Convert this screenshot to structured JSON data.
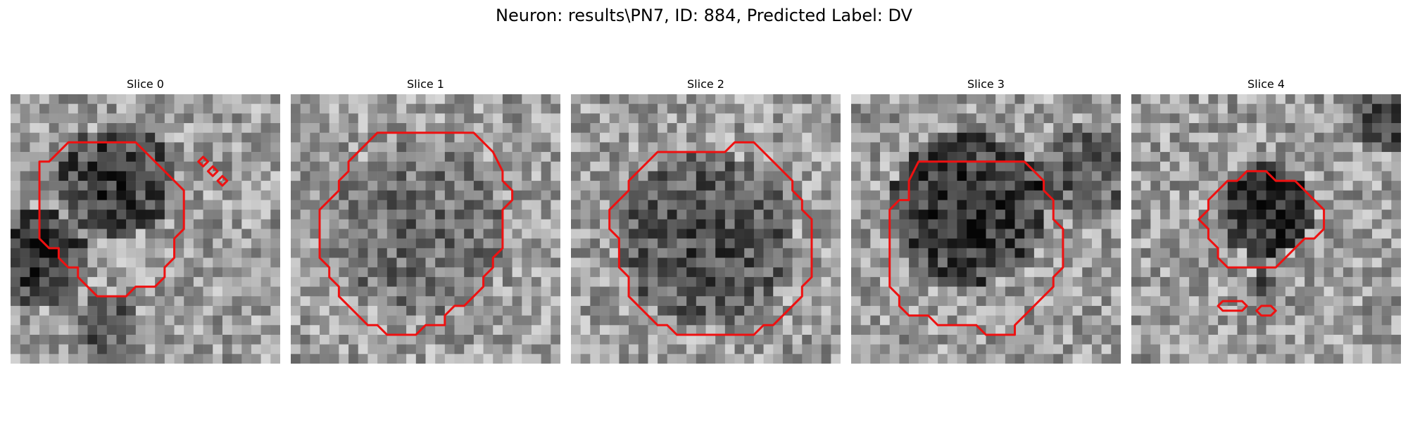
{
  "figure": {
    "title": "Neuron: results\\PN7, ID: 884, Predicted Label: DV",
    "colors": {
      "contour": "#ee1111",
      "background": "#ffffff"
    },
    "panels": [
      {
        "title": "Slice 0",
        "contours": [
          [
            [
              6,
              5
            ],
            [
              13,
              5
            ],
            [
              18,
              10
            ],
            [
              18,
              14
            ],
            [
              17,
              15
            ],
            [
              17,
              17
            ],
            [
              16,
              18
            ],
            [
              16,
              19
            ],
            [
              15,
              20
            ],
            [
              13,
              20
            ],
            [
              12,
              21
            ],
            [
              9,
              21
            ],
            [
              7,
              19
            ],
            [
              7,
              18
            ],
            [
              6,
              18
            ],
            [
              5,
              17
            ],
            [
              5,
              16
            ],
            [
              4,
              16
            ],
            [
              3,
              15
            ],
            [
              3,
              7
            ],
            [
              4,
              7
            ]
          ],
          [
            [
              20,
              6.5
            ],
            [
              20.5,
              7
            ],
            [
              20,
              7.5
            ],
            [
              19.5,
              7
            ]
          ],
          [
            [
              21,
              7.5
            ],
            [
              21.5,
              8
            ],
            [
              21,
              8.5
            ],
            [
              20.5,
              8
            ]
          ],
          [
            [
              22,
              8.5
            ],
            [
              22.5,
              9
            ],
            [
              22,
              9.5
            ],
            [
              21.5,
              9
            ]
          ]
        ]
      },
      {
        "title": "Slice 1",
        "contours": [
          [
            [
              9,
              4
            ],
            [
              19,
              4
            ],
            [
              21,
              6
            ],
            [
              22,
              8
            ],
            [
              22,
              9
            ],
            [
              23,
              10
            ],
            [
              23,
              11
            ],
            [
              22,
              12
            ],
            [
              22,
              16
            ],
            [
              21,
              17
            ],
            [
              21,
              18
            ],
            [
              20,
              19
            ],
            [
              20,
              20
            ],
            [
              18,
              22
            ],
            [
              17,
              22
            ],
            [
              16,
              23
            ],
            [
              16,
              24
            ],
            [
              14,
              24
            ],
            [
              13,
              25
            ],
            [
              10,
              25
            ],
            [
              9,
              24
            ],
            [
              8,
              24
            ],
            [
              6,
              22
            ],
            [
              5,
              21
            ],
            [
              5,
              20
            ],
            [
              4,
              19
            ],
            [
              4,
              18
            ],
            [
              3,
              17
            ],
            [
              3,
              12
            ],
            [
              5,
              10
            ],
            [
              5,
              9
            ],
            [
              6,
              8
            ],
            [
              6,
              7
            ]
          ]
        ]
      },
      {
        "title": "Slice 2",
        "contours": [
          [
            [
              9,
              6
            ],
            [
              16,
              6
            ],
            [
              17,
              5
            ],
            [
              19,
              5
            ],
            [
              20,
              6
            ],
            [
              21,
              7
            ],
            [
              22,
              8
            ],
            [
              23,
              9
            ],
            [
              23,
              10
            ],
            [
              24,
              11
            ],
            [
              24,
              12
            ],
            [
              25,
              13
            ],
            [
              25,
              19
            ],
            [
              24,
              20
            ],
            [
              24,
              21
            ],
            [
              21,
              24
            ],
            [
              20,
              24
            ],
            [
              19,
              25
            ],
            [
              11,
              25
            ],
            [
              10,
              24
            ],
            [
              9,
              24
            ],
            [
              6,
              21
            ],
            [
              6,
              19
            ],
            [
              5,
              18
            ],
            [
              5,
              15
            ],
            [
              4,
              14
            ],
            [
              4,
              12
            ],
            [
              6,
              10
            ],
            [
              6,
              9
            ],
            [
              7,
              8
            ]
          ]
        ]
      },
      {
        "title": "Slice 3",
        "contours": [
          [
            [
              7,
              7
            ],
            [
              18,
              7
            ],
            [
              20,
              9
            ],
            [
              20,
              10
            ],
            [
              21,
              11
            ],
            [
              21,
              13
            ],
            [
              22,
              14
            ],
            [
              22,
              18
            ],
            [
              21,
              19
            ],
            [
              21,
              20
            ],
            [
              17,
              24
            ],
            [
              17,
              25
            ],
            [
              14,
              25
            ],
            [
              13,
              24
            ],
            [
              9,
              24
            ],
            [
              8,
              23
            ],
            [
              6,
              23
            ],
            [
              5,
              22
            ],
            [
              5,
              21
            ],
            [
              4,
              20
            ],
            [
              4,
              12
            ],
            [
              5,
              11
            ],
            [
              6,
              11
            ],
            [
              6,
              9
            ]
          ]
        ]
      },
      {
        "title": "Slice 4",
        "contours": [
          [
            [
              10,
              9
            ],
            [
              11,
              9
            ],
            [
              12,
              8
            ],
            [
              14,
              8
            ],
            [
              15,
              9
            ],
            [
              17,
              9
            ],
            [
              19,
              11
            ],
            [
              20,
              12
            ],
            [
              20,
              14
            ],
            [
              19,
              15
            ],
            [
              18,
              15
            ],
            [
              17,
              16
            ],
            [
              16,
              17
            ],
            [
              15,
              18
            ],
            [
              10,
              18
            ],
            [
              9,
              17
            ],
            [
              9,
              16
            ],
            [
              8,
              15
            ],
            [
              8,
              14
            ],
            [
              7,
              13
            ],
            [
              8,
              12
            ],
            [
              8,
              11
            ]
          ],
          [
            [
              9.5,
              21.5
            ],
            [
              11.5,
              21.5
            ],
            [
              12,
              22
            ],
            [
              11.5,
              22.5
            ],
            [
              9.5,
              22.5
            ],
            [
              9,
              22
            ]
          ],
          [
            [
              13.5,
              22
            ],
            [
              14.5,
              22
            ],
            [
              15,
              22.5
            ],
            [
              14.5,
              23
            ],
            [
              13.5,
              23
            ],
            [
              13,
              22.5
            ]
          ]
        ]
      }
    ]
  }
}
